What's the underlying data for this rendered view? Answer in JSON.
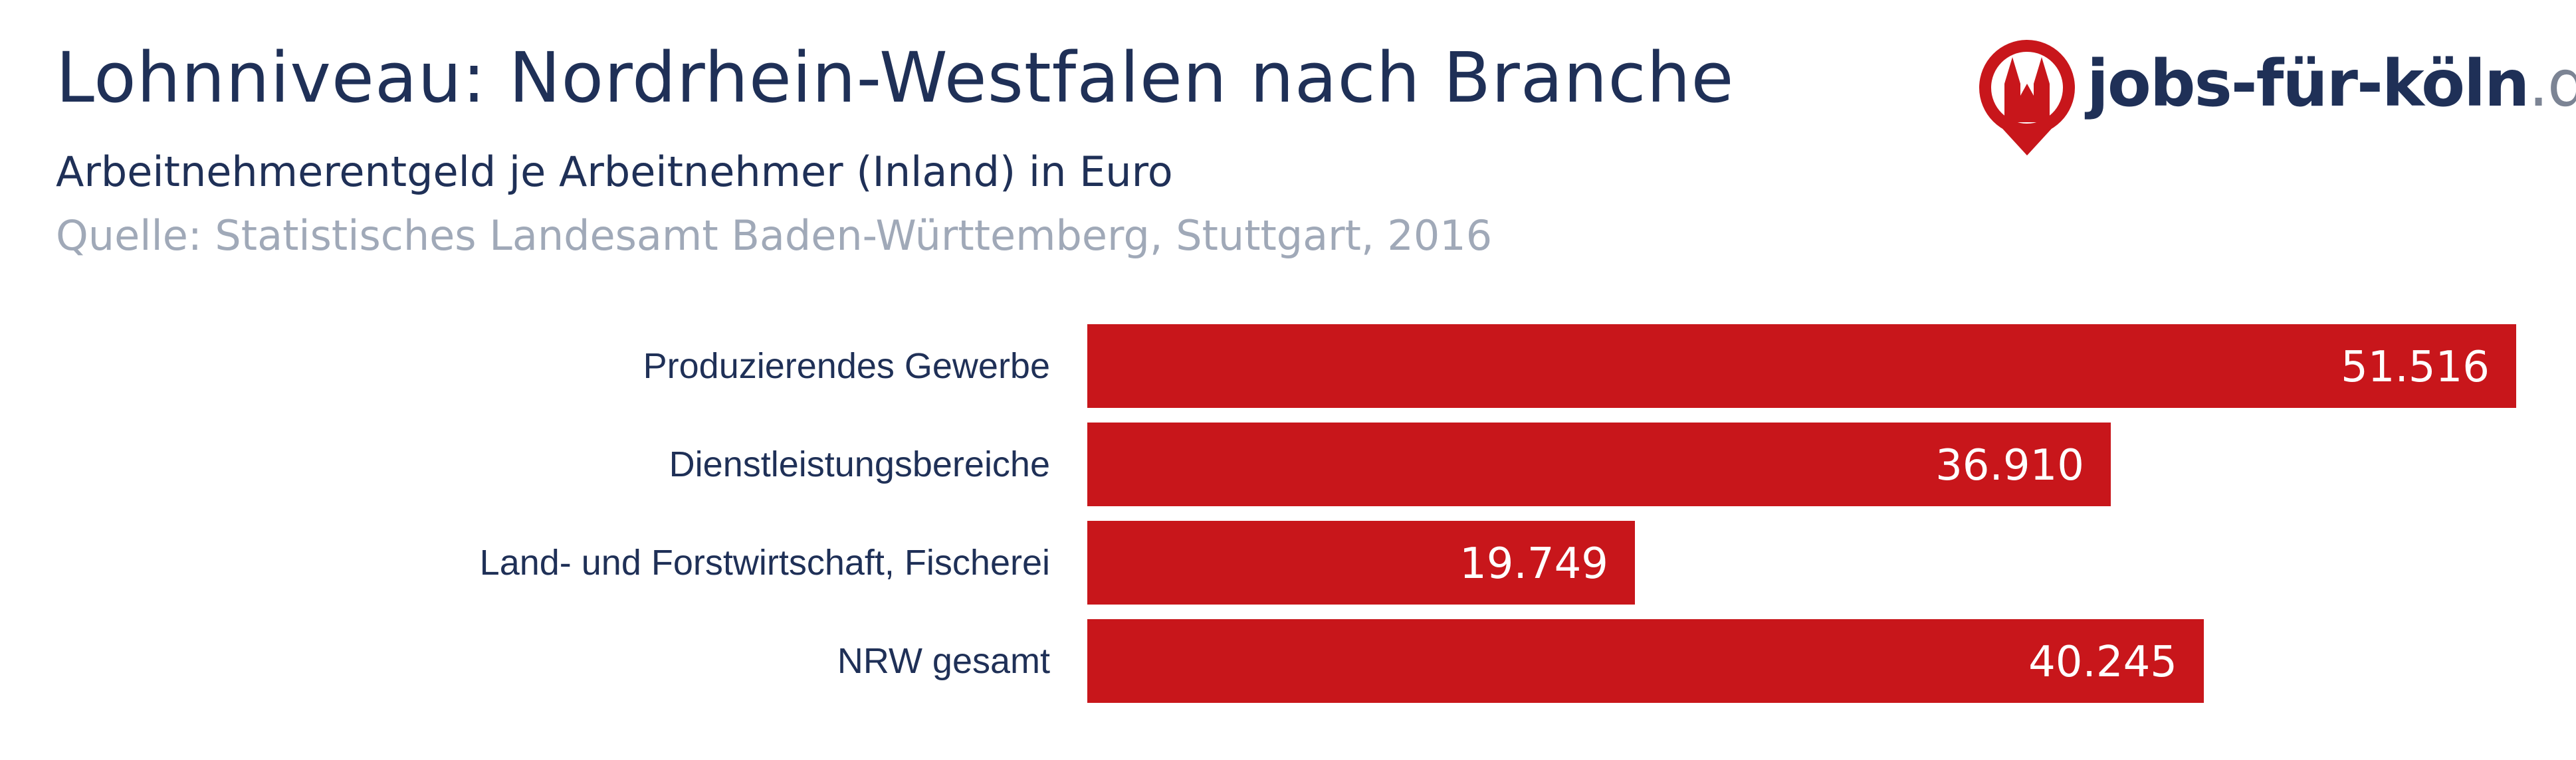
{
  "header": {
    "title": "Lohnniveau: Nordrhein-Westfalen nach Branche",
    "subtitle": "Arbeitnehmerentgeld je Arbeitnehmer (Inland) in Euro",
    "source": "Quelle: Statistisches Landesamt Baden-Württemberg, Stuttgart, 2016"
  },
  "logo": {
    "name": "jobs-für-köln",
    "tld": ".de",
    "pin_color": "#c8161b",
    "icon": "cathedral-pin-icon"
  },
  "chart_data": {
    "type": "bar",
    "orientation": "horizontal",
    "categories": [
      "Produzierendes Gewerbe",
      "Dienstleistungsbereiche",
      "Land- und Forstwirtschaft, Fischerei",
      "NRW gesamt"
    ],
    "values": [
      51516,
      36910,
      19749,
      40245
    ],
    "value_labels": [
      "51.516",
      "36.910",
      "19.749",
      "40.245"
    ],
    "title": "Lohnniveau: Nordrhein-Westfalen nach Branche",
    "xlabel": "",
    "ylabel": "",
    "xlim": [
      0,
      51516
    ],
    "grid": false,
    "legend": "none",
    "bar_color": "#c8161b"
  }
}
